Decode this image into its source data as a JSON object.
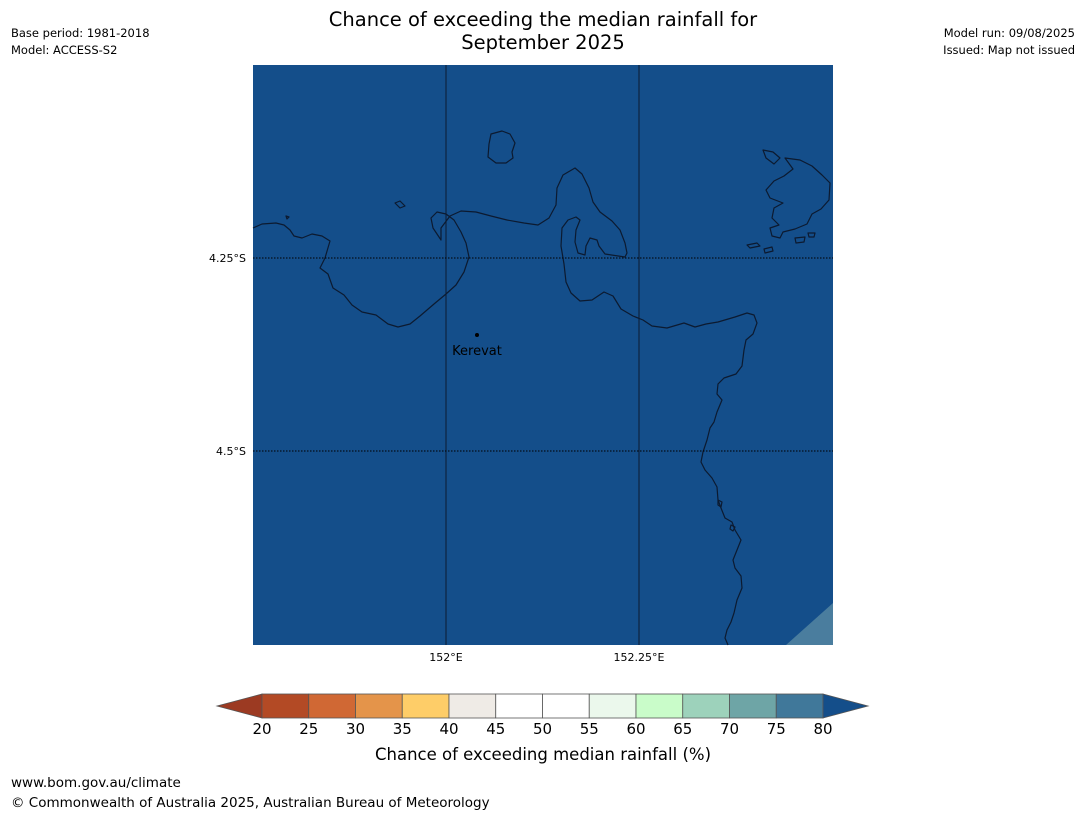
{
  "header": {
    "base_period": "Base period: 1981-2018",
    "model": "Model: ACCESS-S2",
    "title_line1": "Chance of exceeding the median rainfall for",
    "title_line2": "September 2025",
    "model_run": "Model run: 09/08/2025",
    "issued": "Issued: Map not issued"
  },
  "map": {
    "background_color": "#144e8a",
    "corner_color": "#4a7d9e",
    "coastline_color": "#0c1a30",
    "lat_labels": [
      "4.25°S",
      "4.5°S"
    ],
    "lon_labels": [
      "152°E",
      "152.25°E"
    ],
    "place": {
      "name": "Kerevat"
    }
  },
  "colorbar": {
    "label": "Chance of exceeding median rainfall (%)",
    "ticks": [
      "20",
      "25",
      "30",
      "35",
      "40",
      "45",
      "50",
      "55",
      "60",
      "65",
      "70",
      "75",
      "80"
    ],
    "colors": [
      "#b34a25",
      "#d06834",
      "#e4944a",
      "#fecd68",
      "#efebe6",
      "#ffffff",
      "#ffffff",
      "#ebf8ec",
      "#c9fcc9",
      "#9dd2bb",
      "#6ea5a6",
      "#40789a"
    ],
    "low_extend_color": "#9c3a22",
    "high_extend_color": "#144e8a"
  },
  "footer": {
    "url": "www.bom.gov.au/climate",
    "copyright": "© Commonwealth of Australia 2025, Australian Bureau of Meteorology"
  }
}
